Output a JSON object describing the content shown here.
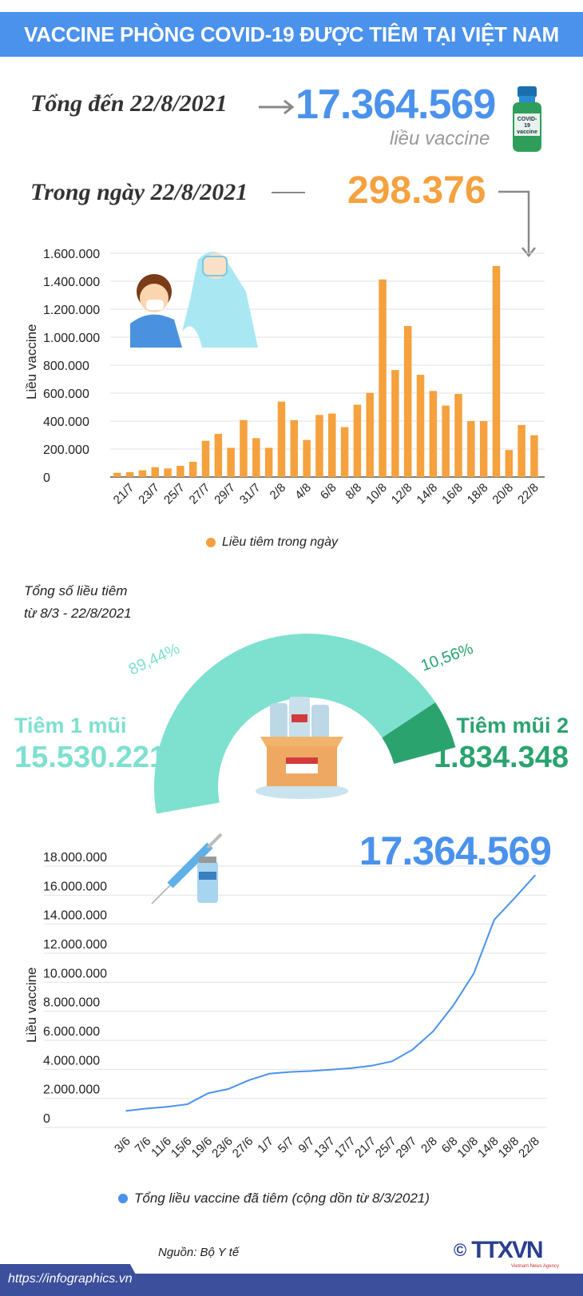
{
  "header": {
    "title": "VACCINE PHÒNG COVID-19 ĐƯỢC TIÊM TẠI VIỆT NAM"
  },
  "summary": {
    "total_label": "Tổng đến 22/8/2021",
    "total_value": "17.364.569",
    "total_unit": "liều vaccine",
    "day_label": "Trong ngày 22/8/2021",
    "day_value": "298.376",
    "vial_label": "COVID-19 vaccine"
  },
  "colors": {
    "blue": "#4a92ec",
    "orange": "#f4a13e",
    "teal": "#7ee0cf",
    "green": "#2aa36f"
  },
  "chart_data": [
    {
      "type": "bar",
      "title": "",
      "ylabel": "Liều vaccine",
      "ylim": [
        0,
        1600000
      ],
      "yticks": [
        "0",
        "200.000",
        "400.000",
        "600.000",
        "800.000",
        "1.000.000",
        "1.200.000",
        "1.400.000",
        "1.600.000"
      ],
      "categories": [
        "20/7",
        "21/7",
        "22/7",
        "23/7",
        "24/7",
        "25/7",
        "26/7",
        "27/7",
        "28/7",
        "29/7",
        "30/7",
        "31/7",
        "1/8",
        "2/8",
        "3/8",
        "4/8",
        "5/8",
        "6/8",
        "7/8",
        "8/8",
        "9/8",
        "10/8",
        "11/8",
        "12/8",
        "13/8",
        "14/8",
        "15/8",
        "16/8",
        "17/8",
        "18/8",
        "19/8",
        "20/8",
        "21/8",
        "22/8"
      ],
      "xtick_labels": [
        "21/7",
        "23/7",
        "25/7",
        "27/7",
        "29/7",
        "31/7",
        "2/8",
        "4/8",
        "6/8",
        "8/8",
        "10/8",
        "12/8",
        "14/8",
        "16/8",
        "18/8",
        "20/8",
        "22/8"
      ],
      "values": [
        30000,
        35000,
        48000,
        70000,
        61000,
        80000,
        109000,
        259000,
        309000,
        209000,
        407000,
        278000,
        209000,
        539000,
        407000,
        265000,
        444000,
        454000,
        357000,
        517000,
        602000,
        1413000,
        765000,
        1080000,
        731000,
        615000,
        511000,
        594000,
        400000,
        400000,
        1509000,
        193000,
        372000,
        298376
      ],
      "legend": "Liều tiêm trong ngày",
      "grid": true
    },
    {
      "type": "pie",
      "title": "Tổng số liều tiêm",
      "subtitle": "từ 8/3 - 22/8/2021",
      "slices": [
        {
          "label": "Tiêm 1 mũi",
          "value": 15530221,
          "value_text": "15.530.221",
          "percent": "89,44%"
        },
        {
          "label": "Tiêm mũi 2",
          "value": 1834348,
          "value_text": "1.834.348",
          "percent": "10,56%"
        }
      ]
    },
    {
      "type": "line",
      "ylabel": "Liều vaccine",
      "ylim": [
        0,
        18000000
      ],
      "yticks": [
        "0",
        "2.000.000",
        "4.000.000",
        "6.000.000",
        "8.000.000",
        "10.000.000",
        "12.000.000",
        "14.000.000",
        "16.000.000",
        "18.000.000"
      ],
      "x": [
        "3/6",
        "7/6",
        "11/6",
        "15/6",
        "19/6",
        "23/6",
        "27/6",
        "1/7",
        "5/7",
        "9/7",
        "13/7",
        "17/7",
        "21/7",
        "25/7",
        "29/7",
        "2/8",
        "6/8",
        "10/8",
        "14/8",
        "18/8",
        "22/8"
      ],
      "values": [
        1140000,
        1300000,
        1420000,
        1600000,
        2350000,
        2650000,
        3250000,
        3700000,
        3820000,
        3880000,
        3980000,
        4080000,
        4250000,
        4550000,
        5350000,
        6600000,
        8400000,
        10600000,
        14300000,
        15800000,
        17364569
      ],
      "highlight_value": "17.364.569",
      "legend": "Tổng liều vaccine đã tiêm (cộng dồn từ 8/3/2021)",
      "grid": true
    }
  ],
  "footer": {
    "source": "Nguồn: Bộ Y tế",
    "url": "https://infographics.vn",
    "copyright": "©",
    "logo": "TTXVN",
    "logo_sub": "Vietnam News Agency"
  }
}
